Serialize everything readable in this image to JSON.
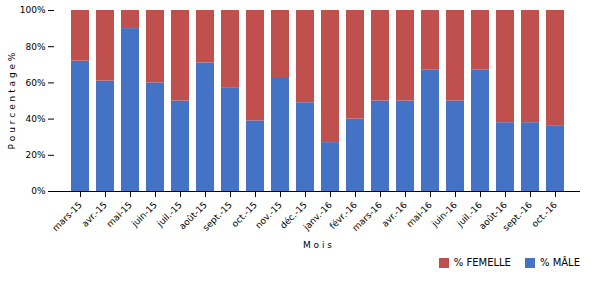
{
  "chart_data": {
    "type": "bar",
    "stacked": true,
    "categories": [
      "mars-15",
      "avr.-15",
      "mai-15",
      "juin-15",
      "juil.-15",
      "août-15",
      "sept.-15",
      "oct.-15",
      "nov.-15",
      "déc.-15",
      "janv.-16",
      "févr.-16",
      "mars-16",
      "avr.-16",
      "mai-16",
      "juin-16",
      "juil.-16",
      "août-16",
      "sept.-16",
      "oct.-16"
    ],
    "series": [
      {
        "name": "% MÂLE",
        "color": "#4472C4",
        "values": [
          72,
          61,
          90,
          60,
          50,
          71,
          57,
          39,
          63,
          49,
          27,
          40,
          50,
          50,
          67,
          50,
          67,
          38,
          38,
          36
        ]
      },
      {
        "name": "% FEMELLE",
        "color": "#C0504D",
        "values": [
          28,
          39,
          10,
          40,
          50,
          29,
          43,
          61,
          37,
          51,
          73,
          60,
          50,
          50,
          33,
          50,
          33,
          62,
          62,
          64
        ]
      }
    ],
    "xlabel": "M o i s",
    "ylabel": "P o u r c e n t a g e %",
    "ylim": [
      0,
      100
    ],
    "yticks": [
      {
        "value": 0,
        "label": "0%"
      },
      {
        "value": 20,
        "label": "20%"
      },
      {
        "value": 40,
        "label": "40%"
      },
      {
        "value": 60,
        "label": "60%"
      },
      {
        "value": 80,
        "label": "80%"
      },
      {
        "value": 100,
        "label": "100%"
      }
    ],
    "grid": false,
    "legend": "lower right"
  }
}
